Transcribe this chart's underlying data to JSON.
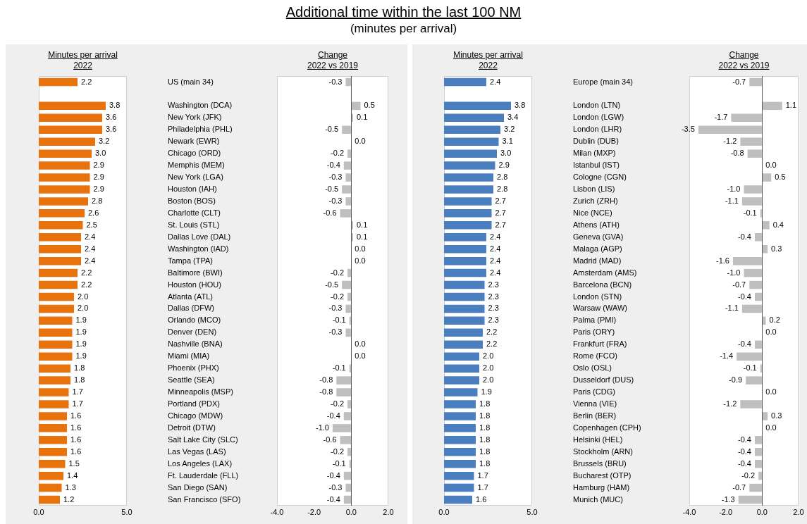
{
  "chart_data": [
    {
      "type": "other",
      "title": "Additional time within the last 100 NM",
      "subtitle": "(minutes per arrival)"
    },
    {
      "type": "bar",
      "orientation": "horizontal",
      "title": "Minutes per arrival",
      "subtitle": "2022",
      "color": "#e8730c",
      "categories": [
        "US (main 34)",
        null,
        "Washington (DCA)",
        "New York (JFK)",
        "Philadelphia (PHL)",
        "Newark (EWR)",
        "Chicago (ORD)",
        "Memphis (MEM)",
        "New York (LGA)",
        "Houston (IAH)",
        "Boston (BOS)",
        "Charlotte (CLT)",
        "St. Louis (STL)",
        "Dallas Love (DAL)",
        "Washington (IAD)",
        "Tampa (TPA)",
        "Baltimore (BWI)",
        "Houston (HOU)",
        "Atlanta (ATL)",
        "Dallas (DFW)",
        "Orlando (MCO)",
        "Denver (DEN)",
        "Nashville (BNA)",
        "Miami (MIA)",
        "Phoenix (PHX)",
        "Seattle (SEA)",
        "Minneapolis (MSP)",
        "Portland (PDX)",
        "Chicago (MDW)",
        "Detroit (DTW)",
        "Salt Lake City (SLC)",
        "Las Vegas (LAS)",
        "Los Angeles (LAX)",
        "Ft. Lauderdale (FLL)",
        "San Diego (SAN)",
        "San Francisco (SFO)"
      ],
      "values": [
        2.2,
        null,
        3.8,
        3.6,
        3.6,
        3.2,
        3.0,
        2.9,
        2.9,
        2.9,
        2.8,
        2.6,
        2.5,
        2.4,
        2.4,
        2.4,
        2.2,
        2.2,
        2.0,
        2.0,
        1.9,
        1.9,
        1.9,
        1.9,
        1.8,
        1.8,
        1.7,
        1.7,
        1.6,
        1.6,
        1.6,
        1.6,
        1.5,
        1.4,
        1.3,
        1.2
      ],
      "value_labels": [
        "2.2",
        null,
        "3.8",
        "3.6",
        "3.6",
        "3.2",
        "3.0",
        "2.9",
        "2.9",
        "2.9",
        "2.8",
        "2.6",
        "2.5",
        "2.4",
        "2.4",
        "2.4",
        "2.2",
        "2.2",
        "2.0",
        "2.0",
        "1.9",
        "1.9",
        "1.9",
        "1.9",
        "1.8",
        "1.8",
        "1.7",
        "1.7",
        "1.6",
        "1.6",
        "1.6",
        "1.6",
        "1.5",
        "1.4",
        "1.3",
        "1.2"
      ],
      "xlim": [
        0,
        5
      ],
      "xticks": [
        {
          "value": 0,
          "label": "0.0"
        },
        {
          "value": 5,
          "label": "5.0"
        }
      ]
    },
    {
      "type": "bar",
      "orientation": "horizontal",
      "title": "Change",
      "subtitle": "2022 vs 2019",
      "color": "#bfbfbf",
      "tick_labels": "x",
      "categories": [
        null,
        null,
        null,
        null,
        null,
        null,
        null,
        null,
        null,
        null,
        null,
        null,
        null,
        null,
        null,
        null,
        null,
        null,
        null,
        null,
        null,
        null,
        null,
        null,
        null,
        null,
        null,
        null,
        null,
        null,
        null,
        null,
        null,
        null,
        null,
        null
      ],
      "values": [
        -0.3,
        null,
        0.5,
        0.1,
        -0.5,
        0.0,
        -0.2,
        -0.4,
        -0.3,
        -0.5,
        -0.3,
        -0.6,
        0.1,
        0.1,
        0.0,
        0.0,
        -0.2,
        -0.5,
        -0.2,
        -0.3,
        -0.1,
        -0.3,
        0.0,
        0.0,
        -0.1,
        -0.8,
        -0.8,
        -0.2,
        -0.4,
        -1.0,
        -0.6,
        -0.2,
        -0.1,
        -0.4,
        -0.3,
        -0.4
      ],
      "value_labels": [
        "-0.3",
        null,
        "0.5",
        "0.1",
        "-0.5",
        "0.0",
        "-0.2",
        "-0.4",
        "-0.3",
        "-0.5",
        "-0.3",
        "-0.6",
        "0.1",
        "0.1",
        "0.0",
        "0.0",
        "-0.2",
        "-0.5",
        "-0.2",
        "-0.3",
        "-0.1",
        "-0.3",
        "0.0",
        "0.0",
        "-0.1",
        "-0.8",
        "-0.8",
        "-0.2",
        "-0.4",
        "-1.0",
        "-0.6",
        "-0.2",
        "-0.1",
        "-0.4",
        "-0.3",
        "-0.4"
      ],
      "xlim": [
        -4,
        2
      ],
      "xticks": [
        {
          "value": -4,
          "label": "-4.0"
        },
        {
          "value": -2,
          "label": "-2.0"
        },
        {
          "value": 0,
          "label": "0.0"
        },
        {
          "value": 2,
          "label": "2.0"
        }
      ]
    },
    {
      "type": "bar",
      "orientation": "horizontal",
      "title": "Minutes per arrival",
      "subtitle": "2022",
      "color": "#4a7ebf",
      "categories": [
        "Europe (main 34)",
        null,
        "London (LTN)",
        "London (LGW)",
        "London (LHR)",
        "Dublin (DUB)",
        "Milan (MXP)",
        "Istanbul (IST)",
        "Cologne (CGN)",
        "Lisbon (LIS)",
        "Zurich (ZRH)",
        "Nice (NCE)",
        "Athens (ATH)",
        "Geneva (GVA)",
        "Malaga (AGP)",
        "Madrid (MAD)",
        "Amsterdam (AMS)",
        "Barcelona (BCN)",
        "London (STN)",
        "Warsaw (WAW)",
        "Palma (PMI)",
        "Paris (ORY)",
        "Frankfurt (FRA)",
        "Rome (FCO)",
        "Oslo (OSL)",
        "Dusseldorf (DUS)",
        "Paris (CDG)",
        "Vienna (VIE)",
        "Berlin (BER)",
        "Copenhagen (CPH)",
        "Helsinki (HEL)",
        "Stockholm (ARN)",
        "Brussels (BRU)",
        "Bucharest (OTP)",
        "Hamburg (HAM)",
        "Munich (MUC)"
      ],
      "values": [
        2.4,
        null,
        3.8,
        3.4,
        3.2,
        3.1,
        3.0,
        2.9,
        2.8,
        2.8,
        2.7,
        2.7,
        2.7,
        2.4,
        2.4,
        2.4,
        2.4,
        2.3,
        2.3,
        2.3,
        2.3,
        2.2,
        2.2,
        2.0,
        2.0,
        2.0,
        1.9,
        1.8,
        1.8,
        1.8,
        1.8,
        1.8,
        1.8,
        1.7,
        1.7,
        1.6
      ],
      "value_labels": [
        "2.4",
        null,
        "3.8",
        "3.4",
        "3.2",
        "3.1",
        "3.0",
        "2.9",
        "2.8",
        "2.8",
        "2.7",
        "2.7",
        "2.7",
        "2.4",
        "2.4",
        "2.4",
        "2.4",
        "2.3",
        "2.3",
        "2.3",
        "2.3",
        "2.2",
        "2.2",
        "2.0",
        "2.0",
        "2.0",
        "1.9",
        "1.8",
        "1.8",
        "1.8",
        "1.8",
        "1.8",
        "1.8",
        "1.7",
        "1.7",
        "1.6"
      ],
      "xlim": [
        0,
        5
      ],
      "xticks": [
        {
          "value": 0,
          "label": "0.0"
        },
        {
          "value": 5,
          "label": "5.0"
        }
      ]
    },
    {
      "type": "bar",
      "orientation": "horizontal",
      "title": "Change",
      "subtitle": "2022 vs 2019",
      "color": "#bfbfbf",
      "tick_labels": "x",
      "categories": [
        null,
        null,
        null,
        null,
        null,
        null,
        null,
        null,
        null,
        null,
        null,
        null,
        null,
        null,
        null,
        null,
        null,
        null,
        null,
        null,
        null,
        null,
        null,
        null,
        null,
        null,
        null,
        null,
        null,
        null,
        null,
        null,
        null,
        null,
        null,
        null
      ],
      "values": [
        -0.7,
        null,
        1.1,
        -1.7,
        -3.5,
        -1.2,
        -0.8,
        0.0,
        0.5,
        -1.0,
        -1.1,
        -0.1,
        0.4,
        -0.4,
        0.3,
        -1.6,
        -1.0,
        -0.7,
        -0.4,
        -1.1,
        0.2,
        0.0,
        -0.4,
        -1.4,
        -0.1,
        -0.9,
        0.0,
        -1.2,
        0.3,
        0.0,
        -0.4,
        -0.4,
        -0.4,
        -0.2,
        -0.7,
        -1.3
      ],
      "value_labels": [
        "-0.7",
        null,
        "1.1",
        "-1.7",
        "-3.5",
        "-1.2",
        "-0.8",
        "0.0",
        "0.5",
        "-1.0",
        "-1.1",
        "-0.1",
        "0.4",
        "-0.4",
        "0.3",
        "-1.6",
        "-1.0",
        "-0.7",
        "-0.4",
        "-1.1",
        "0.2",
        "0.0",
        "-0.4",
        "-1.4",
        "-0.1",
        "-0.9",
        "0.0",
        "-1.2",
        "0.3",
        "0.0",
        "-0.4",
        "-0.4",
        "-0.4",
        "-0.2",
        "-0.7",
        "-1.3"
      ],
      "xlim": [
        -4,
        2
      ],
      "xticks": [
        {
          "value": -4,
          "label": "-4.0"
        },
        {
          "value": -2,
          "label": "-2.0"
        },
        {
          "value": 0,
          "label": "0.0"
        },
        {
          "value": 2,
          "label": "2.0"
        }
      ]
    }
  ]
}
